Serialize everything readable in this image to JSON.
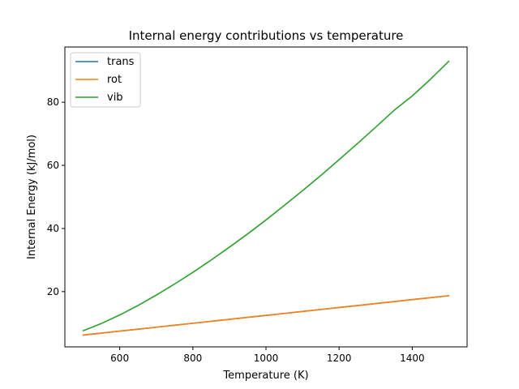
{
  "chart_data": {
    "type": "line",
    "title": "Internal energy contributions vs temperature",
    "xlabel": "Temperature (K)",
    "ylabel": "Internal Energy (kJ/mol)",
    "xlim": [
      450,
      1550
    ],
    "ylim": [
      2.5,
      97.5
    ],
    "xticks": [
      600,
      800,
      1000,
      1200,
      1400
    ],
    "yticks": [
      20,
      40,
      60,
      80
    ],
    "grid": false,
    "legend_position": "upper left",
    "x": [
      500,
      550,
      600,
      650,
      700,
      750,
      800,
      850,
      900,
      950,
      1000,
      1050,
      1100,
      1150,
      1200,
      1250,
      1300,
      1350,
      1400,
      1450,
      1500
    ],
    "series": [
      {
        "name": "trans",
        "color": "#1f77b4",
        "values": [
          6.24,
          6.86,
          7.48,
          8.11,
          8.73,
          9.35,
          9.98,
          10.6,
          11.22,
          11.85,
          12.47,
          13.09,
          13.72,
          14.34,
          14.97,
          15.59,
          16.21,
          16.84,
          17.46,
          18.08,
          18.71
        ]
      },
      {
        "name": "rot",
        "color": "#ff7f0e",
        "values": [
          6.24,
          6.86,
          7.48,
          8.11,
          8.73,
          9.35,
          9.98,
          10.6,
          11.22,
          11.85,
          12.47,
          13.09,
          13.72,
          14.34,
          14.97,
          15.59,
          16.21,
          16.84,
          17.46,
          18.08,
          18.71
        ]
      },
      {
        "name": "vib",
        "color": "#2ca02c",
        "values": [
          7.6,
          9.9,
          12.6,
          15.6,
          18.9,
          22.4,
          26.1,
          30.0,
          34.1,
          38.3,
          42.7,
          47.3,
          52.0,
          56.8,
          61.8,
          66.9,
          72.1,
          77.4,
          82.0,
          87.3,
          93.0
        ]
      }
    ]
  }
}
